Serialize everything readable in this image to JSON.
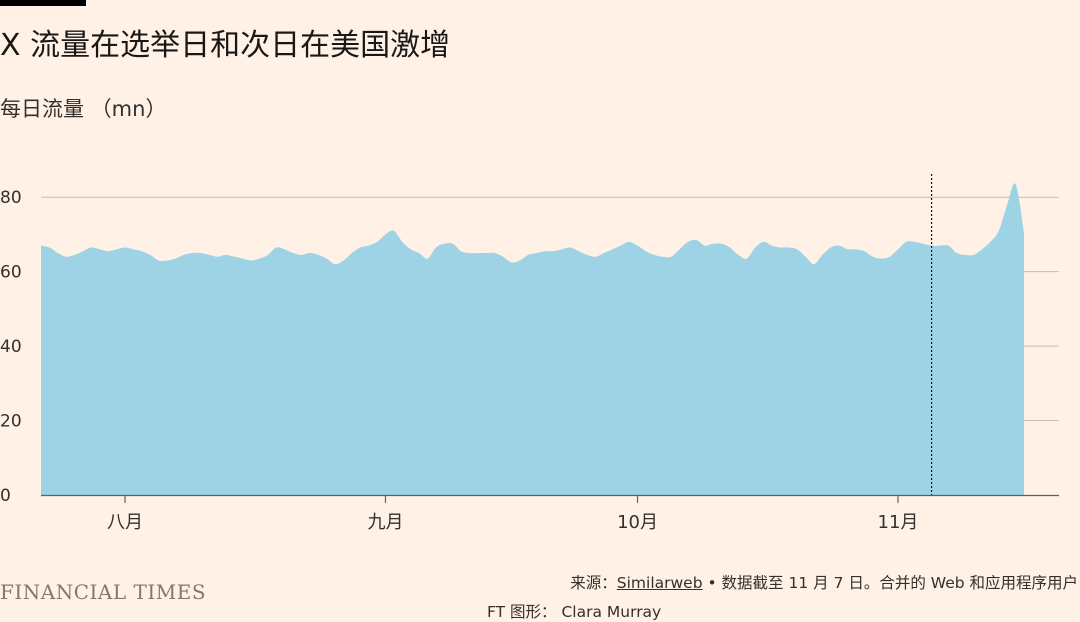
{
  "title": "X 流量在选举日和次日在美国激增",
  "subtitle": "每日流量 （mn）",
  "footer": {
    "logo": "FINANCIAL TIMES",
    "source_prefix": "来源：",
    "source_link": "Similarweb",
    "source_suffix": " • 数据截至 11 月 7 日。合并的 Web 和应用程序用户",
    "credit": "FT 图形： Clara Murray"
  },
  "colors": {
    "background": "#fff1e5",
    "area": "#9dd3e4",
    "gridline": "#c9bcb2",
    "axis": "#66605c"
  },
  "chart_data": {
    "type": "area",
    "title": "X 流量在选举日和次日在美国激增",
    "ylabel": "每日流量 （mn）",
    "xlabel": "",
    "ylim": [
      0,
      90
    ],
    "yticks": [
      0,
      20,
      40,
      60,
      80
    ],
    "xlim": [
      "2024-07-22",
      "2024-11-16"
    ],
    "xticks": [
      {
        "date": "2024-08-01",
        "label": "八月"
      },
      {
        "date": "2024-09-01",
        "label": "九月"
      },
      {
        "date": "2024-10-01",
        "label": "10月"
      },
      {
        "date": "2024-11-01",
        "label": "11月"
      }
    ],
    "grid": true,
    "reference_line": {
      "date": "2024-11-05",
      "style": "dotted"
    },
    "series": [
      {
        "values": [
          [
            "2024-07-22",
            67
          ],
          [
            "2024-07-23",
            66.5
          ],
          [
            "2024-07-24",
            65
          ],
          [
            "2024-07-25",
            64
          ],
          [
            "2024-07-26",
            64.5
          ],
          [
            "2024-07-27",
            65.5
          ],
          [
            "2024-07-28",
            66.5
          ],
          [
            "2024-07-29",
            66
          ],
          [
            "2024-07-30",
            65.5
          ],
          [
            "2024-07-31",
            66
          ],
          [
            "2024-08-01",
            66.5
          ],
          [
            "2024-08-02",
            66
          ],
          [
            "2024-08-03",
            65.5
          ],
          [
            "2024-08-04",
            64.5
          ],
          [
            "2024-08-05",
            63
          ],
          [
            "2024-08-06",
            63
          ],
          [
            "2024-08-07",
            63.5
          ],
          [
            "2024-08-08",
            64.5
          ],
          [
            "2024-08-09",
            65
          ],
          [
            "2024-08-10",
            65
          ],
          [
            "2024-08-11",
            64.5
          ],
          [
            "2024-08-12",
            64
          ],
          [
            "2024-08-13",
            64.5
          ],
          [
            "2024-08-14",
            64
          ],
          [
            "2024-08-15",
            63.5
          ],
          [
            "2024-08-16",
            63
          ],
          [
            "2024-08-17",
            63.5
          ],
          [
            "2024-08-18",
            64.5
          ],
          [
            "2024-08-19",
            66.5
          ],
          [
            "2024-08-20",
            66
          ],
          [
            "2024-08-21",
            65
          ],
          [
            "2024-08-22",
            64.5
          ],
          [
            "2024-08-23",
            65
          ],
          [
            "2024-08-24",
            64.5
          ],
          [
            "2024-08-25",
            63.5
          ],
          [
            "2024-08-26",
            62
          ],
          [
            "2024-08-27",
            63
          ],
          [
            "2024-08-28",
            65
          ],
          [
            "2024-08-29",
            66.5
          ],
          [
            "2024-08-30",
            67
          ],
          [
            "2024-08-31",
            68
          ],
          [
            "2024-09-01",
            70
          ],
          [
            "2024-09-02",
            71
          ],
          [
            "2024-09-03",
            68
          ],
          [
            "2024-09-04",
            66
          ],
          [
            "2024-09-05",
            65
          ],
          [
            "2024-09-06",
            63.5
          ],
          [
            "2024-09-07",
            66.5
          ],
          [
            "2024-09-08",
            67.5
          ],
          [
            "2024-09-09",
            67.5
          ],
          [
            "2024-09-10",
            65.5
          ],
          [
            "2024-09-11",
            65
          ],
          [
            "2024-09-12",
            65
          ],
          [
            "2024-09-13",
            65
          ],
          [
            "2024-09-14",
            65
          ],
          [
            "2024-09-15",
            64
          ],
          [
            "2024-09-16",
            62.5
          ],
          [
            "2024-09-17",
            63
          ],
          [
            "2024-09-18",
            64.5
          ],
          [
            "2024-09-19",
            65
          ],
          [
            "2024-09-20",
            65.5
          ],
          [
            "2024-09-21",
            65.5
          ],
          [
            "2024-09-22",
            66
          ],
          [
            "2024-09-23",
            66.5
          ],
          [
            "2024-09-24",
            65.5
          ],
          [
            "2024-09-25",
            64.5
          ],
          [
            "2024-09-26",
            64
          ],
          [
            "2024-09-27",
            65
          ],
          [
            "2024-09-28",
            66
          ],
          [
            "2024-09-29",
            67
          ],
          [
            "2024-09-30",
            68
          ],
          [
            "2024-10-01",
            67
          ],
          [
            "2024-10-02",
            65.5
          ],
          [
            "2024-10-03",
            64.5
          ],
          [
            "2024-10-04",
            64
          ],
          [
            "2024-10-05",
            64
          ],
          [
            "2024-10-06",
            66
          ],
          [
            "2024-10-07",
            68
          ],
          [
            "2024-10-08",
            68.5
          ],
          [
            "2024-10-09",
            67
          ],
          [
            "2024-10-10",
            67.5
          ],
          [
            "2024-10-11",
            67.5
          ],
          [
            "2024-10-12",
            66.5
          ],
          [
            "2024-10-13",
            64.5
          ],
          [
            "2024-10-14",
            63.5
          ],
          [
            "2024-10-15",
            66.5
          ],
          [
            "2024-10-16",
            68
          ],
          [
            "2024-10-17",
            67
          ],
          [
            "2024-10-18",
            66.5
          ],
          [
            "2024-10-19",
            66.5
          ],
          [
            "2024-10-20",
            66
          ],
          [
            "2024-10-21",
            64
          ],
          [
            "2024-10-22",
            62
          ],
          [
            "2024-10-23",
            64.5
          ],
          [
            "2024-10-24",
            66.5
          ],
          [
            "2024-10-25",
            67
          ],
          [
            "2024-10-26",
            66
          ],
          [
            "2024-10-27",
            66
          ],
          [
            "2024-10-28",
            65.5
          ],
          [
            "2024-10-29",
            64
          ],
          [
            "2024-10-30",
            63.5
          ],
          [
            "2024-10-31",
            64
          ],
          [
            "2024-11-01",
            66
          ],
          [
            "2024-11-02",
            68
          ],
          [
            "2024-11-03",
            68
          ],
          [
            "2024-11-04",
            67.5
          ],
          [
            "2024-11-05",
            67
          ],
          [
            "2024-11-06",
            67
          ],
          [
            "2024-11-07",
            67
          ],
          [
            "2024-11-08",
            65
          ],
          [
            "2024-11-09",
            64.5
          ],
          [
            "2024-11-10",
            64.5
          ],
          [
            "2024-11-11",
            66
          ],
          [
            "2024-11-12",
            68
          ],
          [
            "2024-11-13",
            71
          ],
          [
            "2024-11-14",
            78
          ],
          [
            "2024-11-15",
            83.5
          ],
          [
            "2024-11-16",
            70.5
          ]
        ]
      }
    ]
  }
}
